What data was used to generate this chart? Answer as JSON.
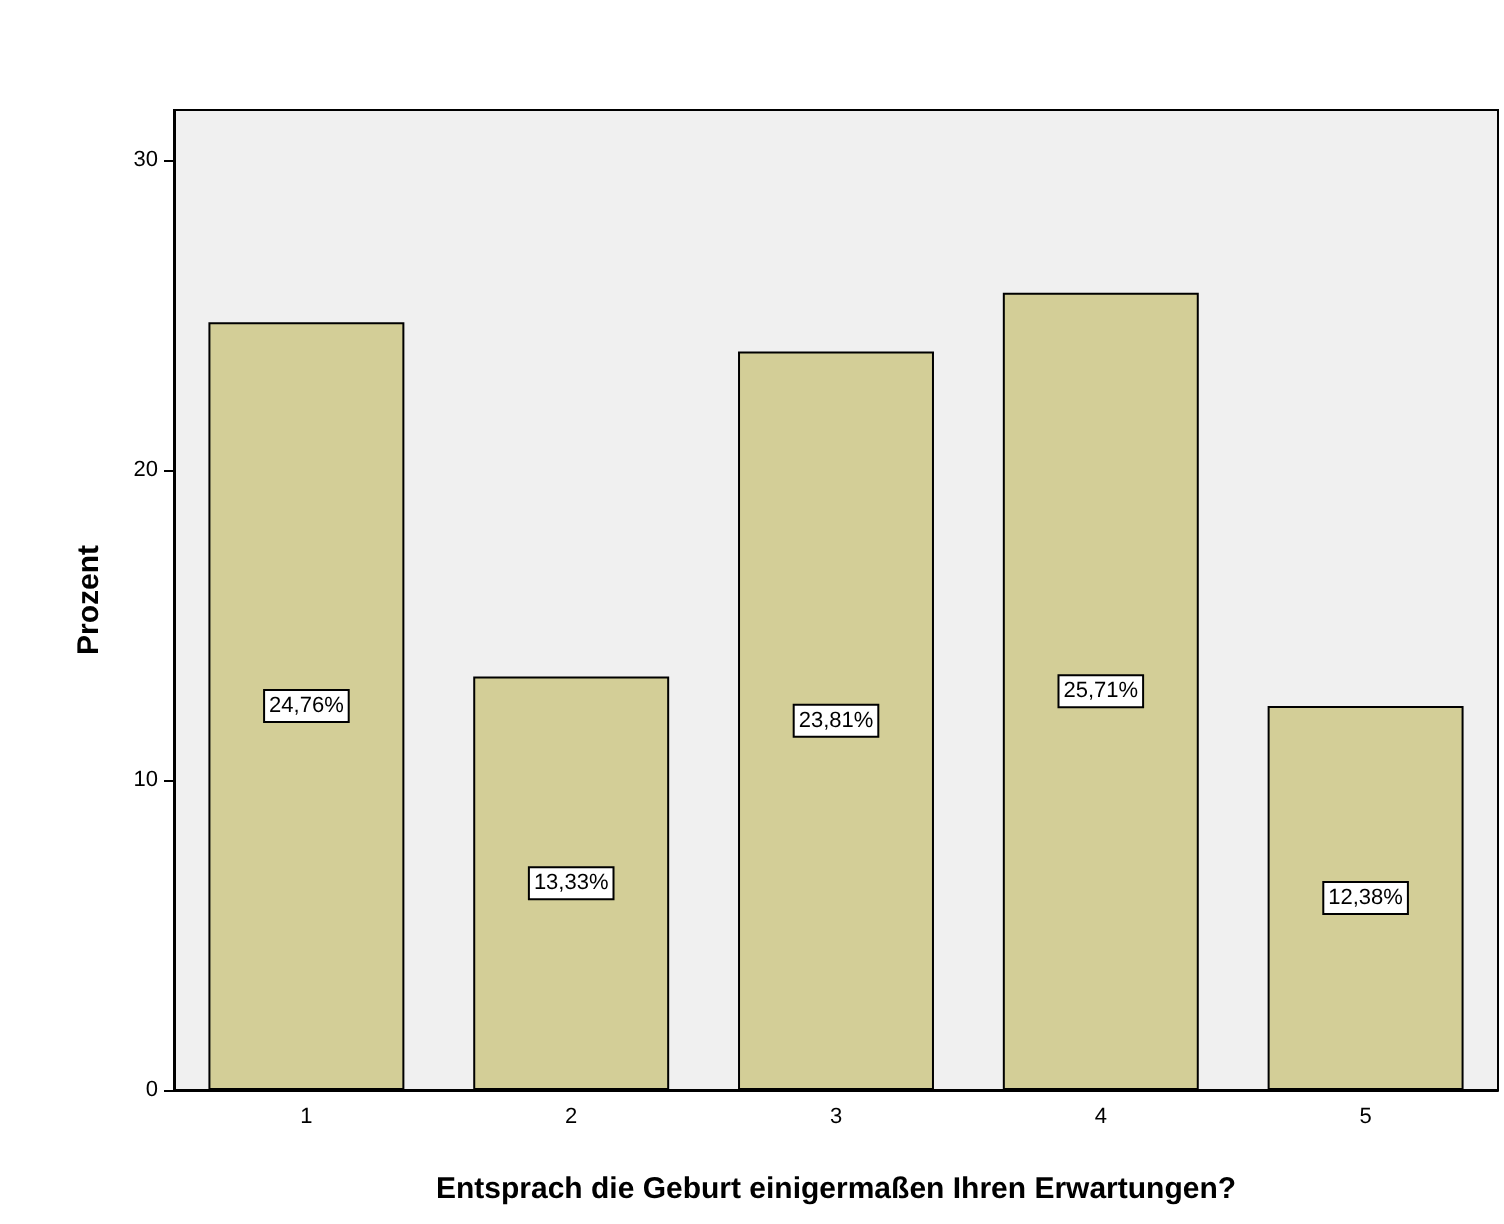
{
  "chart_data": {
    "type": "bar",
    "xlabel": "Entsprach die Geburt einigermaßen Ihren Erwartungen?",
    "ylabel": "Prozent",
    "categories": [
      "1",
      "2",
      "3",
      "4",
      "5"
    ],
    "values": [
      24.76,
      13.33,
      23.81,
      25.71,
      12.38
    ],
    "value_labels": [
      "24,76%",
      "13,33%",
      "23,81%",
      "25,71%",
      "12,38%"
    ],
    "color": "#d3ce97",
    "ylim": [
      0,
      31.6
    ],
    "yticks": [
      0,
      10,
      20,
      30
    ],
    "grid": false
  }
}
